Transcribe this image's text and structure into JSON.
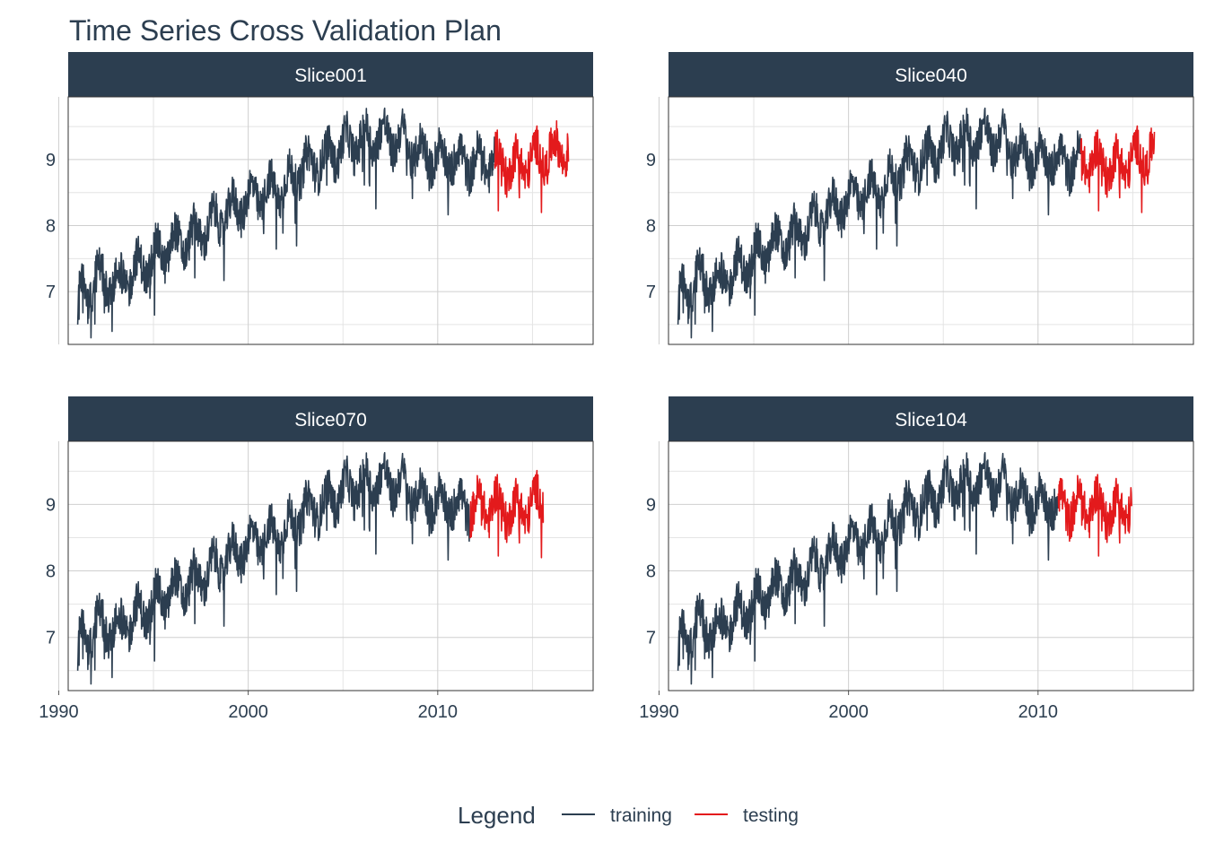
{
  "chart_data": {
    "type": "line",
    "title": "Time Series Cross Validation Plan",
    "xlabel": "",
    "ylabel": "",
    "xlim": [
      1990.5,
      2018.2
    ],
    "ylim": [
      6.2,
      9.95
    ],
    "x_ticks": [
      "1990",
      "2000",
      "2010"
    ],
    "y_ticks": [
      "7",
      "8",
      "9"
    ],
    "grid": true,
    "legend": {
      "title": "Legend",
      "position": "bottom",
      "items": [
        {
          "label": "training",
          "color": "#2c3e50"
        },
        {
          "label": "testing",
          "color": "#e31a1c"
        }
      ]
    },
    "colors": {
      "training": "#2c3e50",
      "testing": "#e31a1c",
      "strip": "#2c3e50"
    },
    "panels": [
      {
        "name": "Slice001",
        "train_start": 1991.0,
        "train_end": 2013.0,
        "test_start": 2013.0,
        "test_end": 2016.9
      },
      {
        "name": "Slice040",
        "train_start": 1991.0,
        "train_end": 2012.25,
        "test_start": 2012.25,
        "test_end": 2016.15
      },
      {
        "name": "Slice070",
        "train_start": 1991.0,
        "train_end": 2011.7,
        "test_start": 2011.7,
        "test_end": 2015.6
      },
      {
        "name": "Slice104",
        "train_start": 1991.0,
        "train_end": 2011.05,
        "test_start": 2011.05,
        "test_end": 2014.95
      }
    ],
    "series_profile": {
      "x": [
        1991.0,
        1992.0,
        1993.0,
        1994.0,
        1995.0,
        1996.0,
        1997.0,
        1998.0,
        1999.0,
        2000.0,
        2001.0,
        2002.0,
        2003.0,
        2004.0,
        2005.0,
        2006.0,
        2007.0,
        2008.0,
        2009.0,
        2010.0,
        2011.0,
        2012.0,
        2013.0,
        2014.0,
        2015.0,
        2016.0,
        2016.9
      ],
      "y": [
        6.9,
        7.2,
        7.1,
        7.3,
        7.5,
        7.7,
        7.8,
        8.0,
        8.2,
        8.4,
        8.5,
        8.6,
        8.9,
        9.0,
        9.2,
        9.3,
        9.35,
        9.3,
        9.1,
        9.05,
        9.0,
        8.95,
        9.0,
        8.9,
        9.0,
        9.1,
        9.2
      ],
      "noise_amplitude": 0.38
    }
  }
}
